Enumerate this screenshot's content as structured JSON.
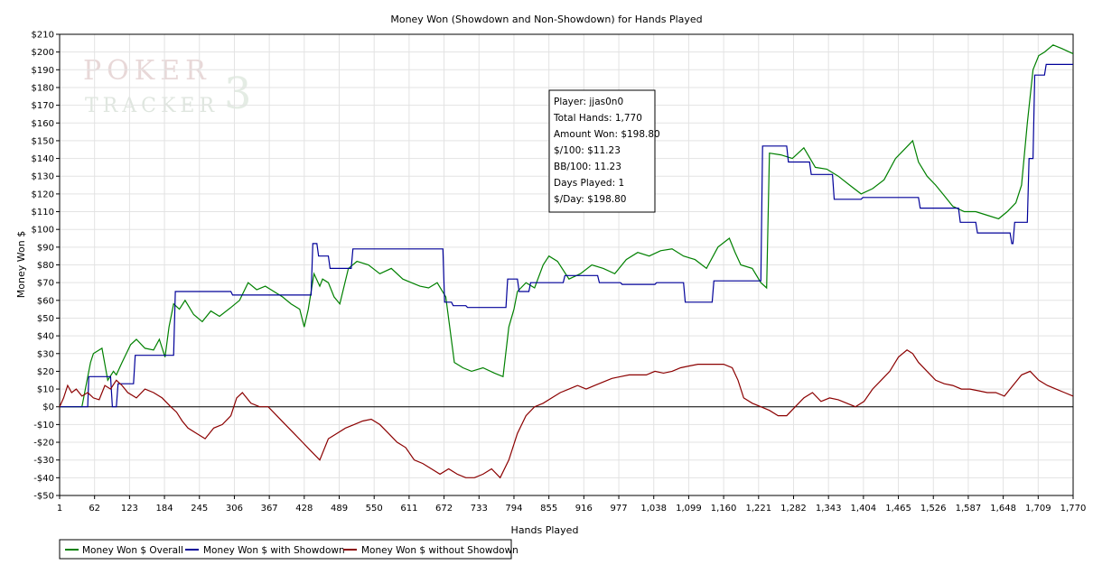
{
  "watermark": {
    "line1": "POKER",
    "line2": "TRACKER",
    "mark": "3"
  },
  "tooltip": {
    "lines": [
      "Player: jjas0n0",
      "Total Hands: 1,770",
      "Amount Won: $198.80",
      "$/100: $11.23",
      "BB/100: 11.23",
      "Days Played: 1",
      "$/Day: $198.80"
    ]
  },
  "chart_data": {
    "type": "line",
    "title": "Money Won (Showdown and Non-Showdown) for Hands Played",
    "xlabel": "Hands Played",
    "ylabel": "Money Won $",
    "xlim": [
      1,
      1770
    ],
    "ylim": [
      -50,
      210
    ],
    "grid": true,
    "legend_position": "bottom-left",
    "x_ticks": [
      1,
      62,
      123,
      184,
      245,
      306,
      367,
      428,
      489,
      550,
      611,
      672,
      733,
      794,
      855,
      916,
      977,
      1038,
      1099,
      1160,
      1221,
      1282,
      1343,
      1404,
      1465,
      1526,
      1587,
      1648,
      1709,
      1770
    ],
    "x_tick_labels": [
      "1",
      "62",
      "123",
      "184",
      "245",
      "306",
      "367",
      "428",
      "489",
      "550",
      "611",
      "672",
      "733",
      "794",
      "855",
      "916",
      "977",
      "1,038",
      "1,099",
      "1,160",
      "1,221",
      "1,282",
      "1,343",
      "1,404",
      "1,465",
      "1,526",
      "1,587",
      "1,648",
      "1,709",
      "1,770"
    ],
    "y_ticks": [
      -50,
      -40,
      -30,
      -20,
      -10,
      0,
      10,
      20,
      30,
      40,
      50,
      60,
      70,
      80,
      90,
      100,
      110,
      120,
      130,
      140,
      150,
      160,
      170,
      180,
      190,
      200,
      210
    ],
    "y_tick_labels": [
      "-$50",
      "-$40",
      "-$30",
      "-$20",
      "-$10",
      "$0",
      "$10",
      "$20",
      "$30",
      "$40",
      "$50",
      "$60",
      "$70",
      "$80",
      "$90",
      "$100",
      "$110",
      "$120",
      "$130",
      "$140",
      "$150",
      "$160",
      "$170",
      "$180",
      "$190",
      "$200",
      "$210"
    ],
    "series": [
      {
        "name": "Money Won $ Overall",
        "color": "#008000",
        "x": [
          1,
          20,
          40,
          55,
          60,
          75,
          85,
          95,
          100,
          110,
          125,
          135,
          150,
          165,
          175,
          185,
          192,
          200,
          210,
          220,
          235,
          250,
          265,
          280,
          300,
          315,
          330,
          345,
          360,
          375,
          390,
          405,
          420,
          428,
          435,
          445,
          455,
          460,
          470,
          480,
          490,
          505,
          520,
          540,
          560,
          580,
          600,
          615,
          630,
          645,
          660,
          675,
          690,
          705,
          720,
          740,
          760,
          775,
          785,
          794,
          800,
          815,
          830,
          845,
          855,
          870,
          890,
          910,
          930,
          950,
          970,
          990,
          1010,
          1030,
          1050,
          1070,
          1090,
          1110,
          1130,
          1150,
          1170,
          1180,
          1190,
          1210,
          1225,
          1235,
          1240,
          1260,
          1280,
          1300,
          1320,
          1340,
          1360,
          1380,
          1400,
          1420,
          1440,
          1460,
          1475,
          1490,
          1500,
          1515,
          1530,
          1545,
          1560,
          1580,
          1600,
          1620,
          1640,
          1655,
          1670,
          1680,
          1690,
          1700,
          1710,
          1720,
          1735,
          1750,
          1770
        ],
        "y": [
          0,
          0,
          0,
          25,
          30,
          33,
          15,
          20,
          18,
          25,
          35,
          38,
          33,
          32,
          38,
          28,
          45,
          58,
          55,
          60,
          52,
          48,
          54,
          51,
          56,
          60,
          70,
          66,
          68,
          65,
          62,
          58,
          55,
          45,
          55,
          75,
          68,
          72,
          70,
          62,
          58,
          78,
          82,
          80,
          75,
          78,
          72,
          70,
          68,
          67,
          70,
          62,
          25,
          22,
          20,
          22,
          19,
          17,
          45,
          55,
          65,
          70,
          67,
          80,
          85,
          82,
          72,
          75,
          80,
          78,
          75,
          83,
          87,
          85,
          88,
          89,
          85,
          83,
          78,
          90,
          95,
          87,
          80,
          78,
          70,
          67,
          143,
          142,
          140,
          146,
          135,
          134,
          130,
          125,
          120,
          123,
          128,
          140,
          145,
          150,
          138,
          130,
          125,
          119,
          113,
          110,
          110,
          108,
          106,
          110,
          115,
          125,
          160,
          190,
          198,
          200,
          204,
          202,
          199
        ],
        "values": [
          0,
          0,
          0,
          25,
          30,
          33,
          15,
          20,
          18,
          25,
          35,
          38,
          33,
          32,
          38,
          28,
          45,
          58,
          55,
          60,
          52,
          48,
          54,
          51,
          56,
          60,
          70,
          66,
          68,
          65,
          62,
          58,
          55,
          45,
          55,
          75,
          68,
          72,
          70,
          62,
          58,
          78,
          82,
          80,
          75,
          78,
          72,
          70,
          68,
          67,
          70,
          62,
          25,
          22,
          20,
          22,
          19,
          17,
          45,
          55,
          65,
          70,
          67,
          80,
          85,
          82,
          72,
          75,
          80,
          78,
          75,
          83,
          87,
          85,
          88,
          89,
          85,
          83,
          78,
          90,
          95,
          87,
          80,
          78,
          70,
          67,
          143,
          142,
          140,
          146,
          135,
          134,
          130,
          125,
          120,
          123,
          128,
          140,
          145,
          150,
          138,
          130,
          125,
          119,
          113,
          110,
          110,
          108,
          106,
          110,
          115,
          125,
          160,
          190,
          198,
          200,
          204,
          202,
          199
        ]
      },
      {
        "name": "Money Won $ with Showdown",
        "color": "#000099",
        "x": [
          1,
          50,
          52,
          90,
          93,
          100,
          103,
          130,
          133,
          200,
          203,
          300,
          303,
          440,
          443,
          450,
          453,
          470,
          473,
          510,
          513,
          670,
          673,
          685,
          688,
          710,
          713,
          780,
          783,
          800,
          803,
          820,
          823,
          880,
          883,
          940,
          943,
          980,
          983,
          1040,
          1043,
          1090,
          1093,
          1140,
          1143,
          1225,
          1228,
          1270,
          1273,
          1310,
          1313,
          1350,
          1353,
          1400,
          1403,
          1500,
          1503,
          1570,
          1573,
          1600,
          1603,
          1660,
          1663,
          1665,
          1668,
          1690,
          1693,
          1700,
          1703,
          1720,
          1723,
          1770
        ],
        "y": [
          0,
          0,
          17,
          17,
          0,
          0,
          13,
          13,
          29,
          29,
          65,
          65,
          63,
          63,
          92,
          92,
          85,
          85,
          78,
          78,
          89,
          89,
          59,
          59,
          57,
          57,
          56,
          56,
          72,
          72,
          65,
          65,
          70,
          70,
          74,
          74,
          70,
          70,
          69,
          69,
          70,
          70,
          59,
          59,
          71,
          71,
          147,
          147,
          138,
          138,
          131,
          131,
          117,
          117,
          118,
          118,
          112,
          112,
          104,
          104,
          98,
          98,
          92,
          92,
          104,
          104,
          140,
          140,
          187,
          187,
          193,
          193
        ],
        "values": [
          0,
          0,
          17,
          17,
          0,
          0,
          13,
          13,
          29,
          29,
          65,
          65,
          63,
          63,
          92,
          92,
          85,
          85,
          78,
          78,
          89,
          89,
          59,
          59,
          57,
          57,
          56,
          56,
          72,
          72,
          65,
          65,
          70,
          70,
          74,
          74,
          70,
          70,
          69,
          69,
          70,
          70,
          59,
          59,
          71,
          71,
          147,
          147,
          138,
          138,
          131,
          131,
          117,
          117,
          118,
          118,
          112,
          112,
          104,
          104,
          98,
          98,
          92,
          92,
          104,
          104,
          140,
          140,
          187,
          187,
          193,
          193
        ]
      },
      {
        "name": "Money Won $ without Showdown",
        "color": "#8b0000",
        "x": [
          1,
          8,
          15,
          22,
          30,
          40,
          50,
          60,
          70,
          80,
          90,
          100,
          110,
          120,
          135,
          150,
          165,
          180,
          195,
          205,
          215,
          225,
          240,
          255,
          270,
          285,
          300,
          310,
          320,
          335,
          350,
          365,
          380,
          395,
          410,
          425,
          440,
          455,
          470,
          485,
          500,
          515,
          530,
          545,
          560,
          575,
          590,
          605,
          620,
          635,
          650,
          665,
          680,
          695,
          710,
          725,
          740,
          755,
          770,
          785,
          800,
          815,
          830,
          845,
          860,
          875,
          890,
          905,
          920,
          935,
          950,
          965,
          980,
          995,
          1010,
          1025,
          1040,
          1055,
          1070,
          1085,
          1100,
          1115,
          1130,
          1145,
          1160,
          1175,
          1185,
          1195,
          1210,
          1225,
          1240,
          1255,
          1270,
          1285,
          1300,
          1315,
          1330,
          1345,
          1360,
          1375,
          1390,
          1405,
          1420,
          1435,
          1450,
          1465,
          1480,
          1490,
          1500,
          1515,
          1530,
          1545,
          1560,
          1575,
          1590,
          1605,
          1620,
          1635,
          1650,
          1665,
          1680,
          1695,
          1710,
          1725,
          1740,
          1755,
          1770
        ],
        "y": [
          0,
          5,
          12,
          8,
          10,
          6,
          8,
          5,
          4,
          12,
          10,
          15,
          12,
          8,
          5,
          10,
          8,
          5,
          0,
          -3,
          -8,
          -12,
          -15,
          -18,
          -12,
          -10,
          -5,
          5,
          8,
          2,
          0,
          0,
          -5,
          -10,
          -15,
          -20,
          -25,
          -30,
          -18,
          -15,
          -12,
          -10,
          -8,
          -7,
          -10,
          -15,
          -20,
          -23,
          -30,
          -32,
          -35,
          -38,
          -35,
          -38,
          -40,
          -40,
          -38,
          -35,
          -40,
          -30,
          -15,
          -5,
          0,
          2,
          5,
          8,
          10,
          12,
          10,
          12,
          14,
          16,
          17,
          18,
          18,
          18,
          20,
          19,
          20,
          22,
          23,
          24,
          24,
          24,
          24,
          22,
          15,
          5,
          2,
          0,
          -2,
          -5,
          -5,
          0,
          5,
          8,
          3,
          5,
          4,
          2,
          0,
          3,
          10,
          15,
          20,
          28,
          32,
          30,
          25,
          20,
          15,
          13,
          12,
          10,
          10,
          9,
          8,
          8,
          6,
          12,
          18,
          20,
          15,
          12,
          10,
          8,
          6
        ],
        "values": [
          0,
          5,
          12,
          8,
          10,
          6,
          8,
          5,
          4,
          12,
          10,
          15,
          12,
          8,
          5,
          10,
          8,
          5,
          0,
          -3,
          -8,
          -12,
          -15,
          -18,
          -12,
          -10,
          -5,
          5,
          8,
          2,
          0,
          0,
          -5,
          -10,
          -15,
          -20,
          -25,
          -30,
          -18,
          -15,
          -12,
          -10,
          -8,
          -7,
          -10,
          -15,
          -20,
          -23,
          -30,
          -32,
          -35,
          -38,
          -35,
          -38,
          -40,
          -40,
          -38,
          -35,
          -40,
          -30,
          -15,
          -5,
          0,
          2,
          5,
          8,
          10,
          12,
          10,
          12,
          14,
          16,
          17,
          18,
          18,
          18,
          20,
          19,
          20,
          22,
          23,
          24,
          24,
          24,
          24,
          22,
          15,
          5,
          2,
          0,
          -2,
          -5,
          -5,
          0,
          5,
          8,
          3,
          5,
          4,
          2,
          0,
          3,
          10,
          15,
          20,
          28,
          32,
          30,
          25,
          20,
          15,
          13,
          12,
          10,
          10,
          9,
          8,
          8,
          6,
          12,
          18,
          20,
          15,
          12,
          10,
          8,
          6
        ]
      }
    ]
  }
}
